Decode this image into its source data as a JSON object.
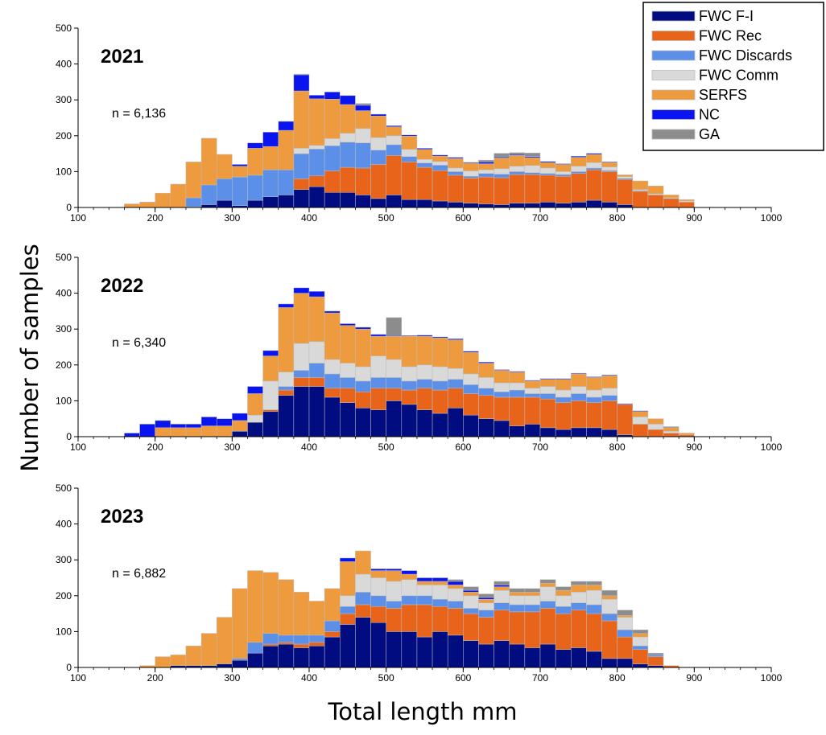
{
  "chart_data": {
    "type": "bar",
    "stacked": true,
    "xlabel": "Total length mm",
    "ylabel": "Number of samples",
    "xlim": [
      100,
      1000
    ],
    "ylim": [
      0,
      500
    ],
    "x_ticks": [
      100,
      200,
      300,
      400,
      500,
      600,
      700,
      800,
      900,
      1000
    ],
    "y_ticks": [
      0,
      100,
      200,
      300,
      400,
      500
    ],
    "bin_width": 20,
    "legend": {
      "placement": "top-right",
      "entries": [
        {
          "name": "FWC F-I",
          "color": "#000C80"
        },
        {
          "name": "FWC Rec",
          "color": "#E8641B"
        },
        {
          "name": "FWC Discards",
          "color": "#5B8FE8"
        },
        {
          "name": "FWC Comm",
          "color": "#D9D9D9"
        },
        {
          "name": "SERFS",
          "color": "#EE9A3E"
        },
        {
          "name": "NC",
          "color": "#0A14F0"
        },
        {
          "name": "GA",
          "color": "#8C8C8C"
        }
      ]
    },
    "bins": [
      160,
      180,
      200,
      220,
      240,
      260,
      280,
      300,
      320,
      340,
      360,
      380,
      400,
      420,
      440,
      460,
      480,
      500,
      520,
      540,
      560,
      580,
      600,
      620,
      640,
      660,
      680,
      700,
      720,
      740,
      760,
      780,
      800,
      820,
      840,
      860,
      880
    ],
    "panels": [
      {
        "title": "2021",
        "n_label": "n = 6,136",
        "series": [
          {
            "name": "FWC F-I",
            "values": [
              0,
              0,
              0,
              0,
              2,
              8,
              20,
              5,
              20,
              30,
              35,
              50,
              58,
              42,
              42,
              35,
              25,
              35,
              22,
              22,
              18,
              15,
              12,
              10,
              8,
              12,
              12,
              15,
              12,
              15,
              20,
              15,
              8,
              0,
              0,
              0,
              0
            ]
          },
          {
            "name": "FWC Rec",
            "values": [
              0,
              0,
              0,
              0,
              0,
              0,
              0,
              0,
              0,
              0,
              0,
              30,
              30,
              60,
              70,
              75,
              95,
              110,
              105,
              90,
              85,
              75,
              70,
              75,
              75,
              80,
              80,
              75,
              75,
              80,
              85,
              85,
              70,
              45,
              35,
              25,
              15
            ]
          },
          {
            "name": "FWC Discards",
            "values": [
              0,
              0,
              0,
              0,
              25,
              55,
              60,
              80,
              70,
              75,
              70,
              70,
              75,
              70,
              70,
              70,
              40,
              30,
              15,
              12,
              15,
              10,
              5,
              10,
              10,
              8,
              5,
              5,
              5,
              5,
              5,
              3,
              3,
              2,
              0,
              0,
              0
            ]
          },
          {
            "name": "FWC Comm",
            "values": [
              0,
              0,
              0,
              0,
              0,
              0,
              0,
              0,
              0,
              0,
              0,
              15,
              10,
              20,
              25,
              40,
              35,
              25,
              20,
              10,
              10,
              10,
              15,
              10,
              15,
              15,
              20,
              15,
              8,
              15,
              15,
              10,
              5,
              3,
              3,
              2,
              3
            ]
          },
          {
            "name": "SERFS",
            "values": [
              10,
              15,
              40,
              65,
              100,
              130,
              68,
              30,
              75,
              65,
              110,
              160,
              130,
              110,
              80,
              50,
              60,
              25,
              37,
              28,
              15,
              27,
              22,
              17,
              30,
              30,
              22,
              15,
              20,
              25,
              23,
              12,
              5,
              24,
              22,
              8,
              4
            ]
          },
          {
            "name": "NC",
            "values": [
              0,
              0,
              0,
              0,
              0,
              0,
              0,
              5,
              15,
              40,
              25,
              45,
              10,
              20,
              25,
              15,
              5,
              3,
              3,
              3,
              3,
              3,
              2,
              5,
              3,
              3,
              3,
              3,
              2,
              3,
              3,
              2,
              0,
              0,
              0,
              0,
              0
            ]
          },
          {
            "name": "GA",
            "values": [
              0,
              0,
              0,
              0,
              0,
              0,
              0,
              0,
              0,
              0,
              0,
              2,
              0,
              0,
              0,
              5,
              0,
              0,
              0,
              0,
              0,
              0,
              0,
              5,
              10,
              5,
              10,
              0,
              0,
              0,
              0,
              0,
              0,
              0,
              0,
              0,
              0
            ]
          }
        ]
      },
      {
        "title": "2022",
        "n_label": "n = 6,340",
        "series": [
          {
            "name": "FWC F-I",
            "values": [
              0,
              0,
              0,
              0,
              0,
              0,
              0,
              15,
              40,
              70,
              115,
              140,
              140,
              110,
              95,
              80,
              75,
              100,
              90,
              75,
              65,
              80,
              60,
              50,
              45,
              30,
              35,
              25,
              20,
              25,
              25,
              20,
              5,
              0,
              0,
              0,
              0
            ]
          },
          {
            "name": "FWC Rec",
            "values": [
              0,
              0,
              0,
              0,
              0,
              0,
              0,
              0,
              0,
              5,
              15,
              25,
              25,
              25,
              40,
              45,
              60,
              35,
              40,
              60,
              65,
              55,
              60,
              65,
              65,
              80,
              75,
              80,
              75,
              75,
              70,
              80,
              85,
              35,
              20,
              10,
              5
            ]
          },
          {
            "name": "FWC Discards",
            "values": [
              0,
              0,
              0,
              0,
              0,
              0,
              0,
              0,
              0,
              0,
              10,
              20,
              40,
              40,
              30,
              30,
              30,
              30,
              25,
              25,
              25,
              25,
              25,
              20,
              15,
              20,
              10,
              15,
              15,
              20,
              15,
              15,
              0,
              0,
              0,
              0,
              0
            ]
          },
          {
            "name": "FWC Comm",
            "values": [
              0,
              0,
              0,
              0,
              0,
              0,
              0,
              0,
              20,
              80,
              40,
              75,
              60,
              40,
              40,
              40,
              60,
              50,
              40,
              40,
              40,
              30,
              30,
              30,
              25,
              20,
              15,
              20,
              20,
              20,
              20,
              20,
              0,
              20,
              15,
              5,
              0
            ]
          },
          {
            "name": "SERFS",
            "values": [
              0,
              0,
              25,
              25,
              25,
              30,
              30,
              30,
              60,
              70,
              180,
              140,
              125,
              130,
              105,
              105,
              55,
              65,
              85,
              80,
              80,
              80,
              60,
              40,
              35,
              30,
              20,
              20,
              30,
              35,
              35,
              35,
              0,
              15,
              15,
              10,
              5
            ]
          },
          {
            "name": "NC",
            "values": [
              10,
              35,
              20,
              10,
              10,
              25,
              20,
              20,
              20,
              15,
              10,
              15,
              15,
              5,
              5,
              5,
              5,
              2,
              2,
              3,
              3,
              3,
              3,
              3,
              2,
              2,
              2,
              2,
              2,
              2,
              2,
              2,
              2,
              2,
              0,
              0,
              0
            ]
          },
          {
            "name": "GA",
            "values": [
              0,
              0,
              0,
              0,
              0,
              0,
              0,
              0,
              0,
              0,
              0,
              0,
              0,
              0,
              0,
              0,
              0,
              50,
              0,
              0,
              0,
              0,
              0,
              0,
              0,
              0,
              0,
              0,
              0,
              0,
              0,
              0,
              0,
              0,
              0,
              3,
              0
            ]
          }
        ]
      },
      {
        "title": "2023",
        "n_label": "n = 6,882",
        "series": [
          {
            "name": "FWC F-I",
            "values": [
              0,
              0,
              0,
              5,
              5,
              5,
              10,
              20,
              40,
              60,
              65,
              55,
              60,
              85,
              120,
              140,
              125,
              100,
              100,
              85,
              100,
              90,
              75,
              65,
              75,
              65,
              55,
              65,
              50,
              55,
              45,
              25,
              25,
              10,
              5,
              0,
              0
            ]
          },
          {
            "name": "FWC Rec",
            "values": [
              0,
              0,
              0,
              0,
              0,
              0,
              0,
              0,
              0,
              5,
              5,
              10,
              10,
              15,
              30,
              35,
              45,
              65,
              75,
              90,
              70,
              75,
              75,
              75,
              85,
              90,
              100,
              100,
              100,
              105,
              105,
              105,
              60,
              40,
              25,
              5,
              0
            ]
          },
          {
            "name": "FWC Discards",
            "values": [
              0,
              0,
              0,
              0,
              0,
              0,
              0,
              5,
              30,
              30,
              20,
              25,
              20,
              30,
              20,
              35,
              30,
              20,
              25,
              25,
              20,
              20,
              15,
              20,
              20,
              20,
              20,
              20,
              20,
              20,
              25,
              20,
              20,
              10,
              5,
              0,
              0
            ]
          },
          {
            "name": "FWC Comm",
            "values": [
              0,
              0,
              0,
              0,
              0,
              0,
              0,
              0,
              0,
              0,
              0,
              0,
              0,
              0,
              30,
              50,
              50,
              55,
              45,
              30,
              40,
              35,
              35,
              20,
              35,
              25,
              25,
              40,
              30,
              30,
              40,
              40,
              35,
              25,
              0,
              0,
              0
            ]
          },
          {
            "name": "SERFS",
            "values": [
              0,
              5,
              30,
              30,
              55,
              90,
              130,
              195,
              200,
              170,
              155,
              120,
              95,
              90,
              95,
              65,
              20,
              30,
              15,
              10,
              10,
              10,
              10,
              10,
              10,
              10,
              10,
              10,
              15,
              20,
              15,
              10,
              5,
              10,
              0,
              0,
              0
            ]
          },
          {
            "name": "NC",
            "values": [
              0,
              0,
              0,
              0,
              0,
              0,
              0,
              0,
              0,
              0,
              0,
              0,
              0,
              0,
              10,
              0,
              5,
              5,
              10,
              10,
              10,
              10,
              5,
              5,
              5,
              0,
              0,
              0,
              0,
              0,
              0,
              0,
              0,
              0,
              0,
              0,
              0
            ]
          },
          {
            "name": "GA",
            "values": [
              0,
              0,
              0,
              0,
              0,
              0,
              0,
              0,
              0,
              0,
              0,
              0,
              0,
              0,
              0,
              0,
              0,
              0,
              0,
              0,
              0,
              5,
              10,
              10,
              10,
              10,
              10,
              10,
              10,
              10,
              10,
              15,
              15,
              10,
              5,
              0,
              0
            ]
          }
        ]
      }
    ]
  }
}
